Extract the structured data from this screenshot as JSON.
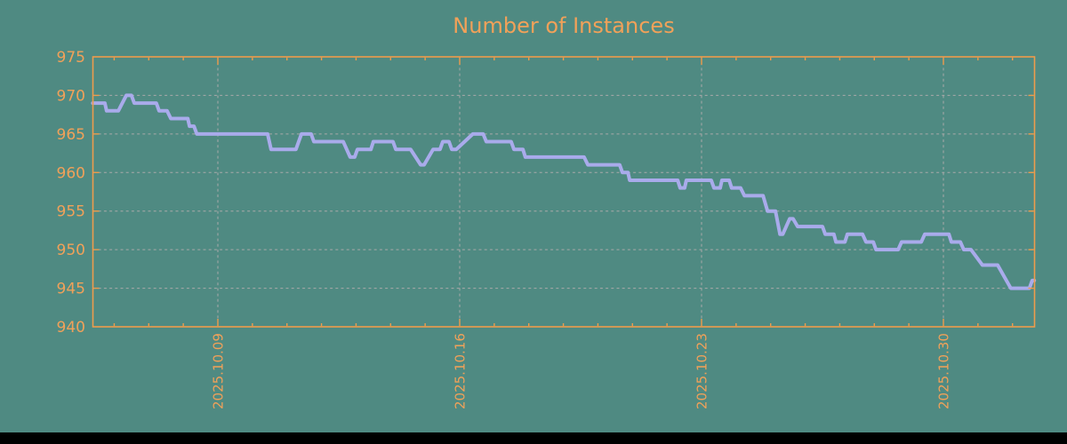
{
  "title": "Number of Instances",
  "colors": {
    "background": "#4F8A82",
    "title_text": "#F1A159",
    "tick_label_text": "#F1A159",
    "axis_border": "#EE9C4C",
    "gridlines": "#A9A9A9",
    "series_line": "#A9ABEB",
    "bottom_bar": "#000000"
  },
  "chart_data": {
    "type": "line",
    "title": "Number of Instances",
    "xlabel": "",
    "ylabel": "",
    "legend": "none",
    "grid": "dashed",
    "y_axis": {
      "ticks": [
        940,
        945,
        950,
        955,
        960,
        965,
        970,
        975
      ],
      "tick_labels": [
        "940",
        "945",
        "950",
        "955",
        "960",
        "965",
        "970",
        "975"
      ],
      "gridline_values": [
        945,
        950,
        955,
        960,
        965,
        970
      ],
      "range": [
        940,
        975
      ]
    },
    "x_axis": {
      "unit": "fractional day of October 2025 (values above 31 are November)",
      "major_ticks": [
        {
          "day": 9,
          "label": "2025.10.09"
        },
        {
          "day": 16,
          "label": "2025.10.16"
        },
        {
          "day": 23,
          "label": "2025.10.23"
        },
        {
          "day": 30,
          "label": "2025.10.30"
        }
      ],
      "minor_tick_every_days": 1,
      "minor_tick_day_range": [
        6,
        32
      ],
      "domain_days": [
        5.38,
        32.63
      ]
    },
    "series": [
      {
        "name": "instances",
        "color": "#A9ABEB",
        "steps_format": "[day_start, day_end, value] — constant value between the two fractional days",
        "steps": [
          [
            5.38,
            5.73,
            969
          ],
          [
            5.78,
            6.12,
            968
          ],
          [
            6.35,
            6.5,
            970
          ],
          [
            6.58,
            7.22,
            969
          ],
          [
            7.3,
            7.53,
            968
          ],
          [
            7.64,
            8.13,
            967
          ],
          [
            8.18,
            8.31,
            966
          ],
          [
            8.39,
            10.44,
            965
          ],
          [
            10.54,
            11.26,
            963
          ],
          [
            11.42,
            11.7,
            965
          ],
          [
            11.78,
            12.63,
            964
          ],
          [
            12.83,
            12.96,
            962
          ],
          [
            13.04,
            13.43,
            963
          ],
          [
            13.5,
            14.07,
            964
          ],
          [
            14.15,
            14.58,
            963
          ],
          [
            14.87,
            14.97,
            961
          ],
          [
            15.23,
            15.43,
            963
          ],
          [
            15.51,
            15.69,
            964
          ],
          [
            15.77,
            15.9,
            963
          ],
          [
            16.38,
            16.68,
            965
          ],
          [
            16.77,
            17.49,
            964
          ],
          [
            17.57,
            17.83,
            963
          ],
          [
            17.9,
            19.6,
            962
          ],
          [
            19.71,
            20.63,
            961
          ],
          [
            20.71,
            20.87,
            960
          ],
          [
            20.92,
            22.31,
            959
          ],
          [
            22.38,
            22.51,
            958
          ],
          [
            22.56,
            23.28,
            959
          ],
          [
            23.36,
            23.54,
            958
          ],
          [
            23.59,
            23.8,
            959
          ],
          [
            23.87,
            24.13,
            958
          ],
          [
            24.24,
            24.78,
            957
          ],
          [
            24.91,
            25.14,
            955
          ],
          [
            25.27,
            25.35,
            952
          ],
          [
            25.55,
            25.65,
            954
          ],
          [
            25.78,
            26.5,
            953
          ],
          [
            26.58,
            26.83,
            952
          ],
          [
            26.89,
            27.15,
            951
          ],
          [
            27.22,
            27.66,
            952
          ],
          [
            27.76,
            27.97,
            951
          ],
          [
            28.05,
            28.69,
            950
          ],
          [
            28.79,
            29.36,
            951
          ],
          [
            29.46,
            30.16,
            952
          ],
          [
            30.23,
            30.49,
            951
          ],
          [
            30.59,
            30.8,
            950
          ],
          [
            31.13,
            31.57,
            948
          ],
          [
            31.95,
            32.49,
            945
          ],
          [
            32.57,
            32.63,
            946
          ]
        ]
      }
    ]
  }
}
